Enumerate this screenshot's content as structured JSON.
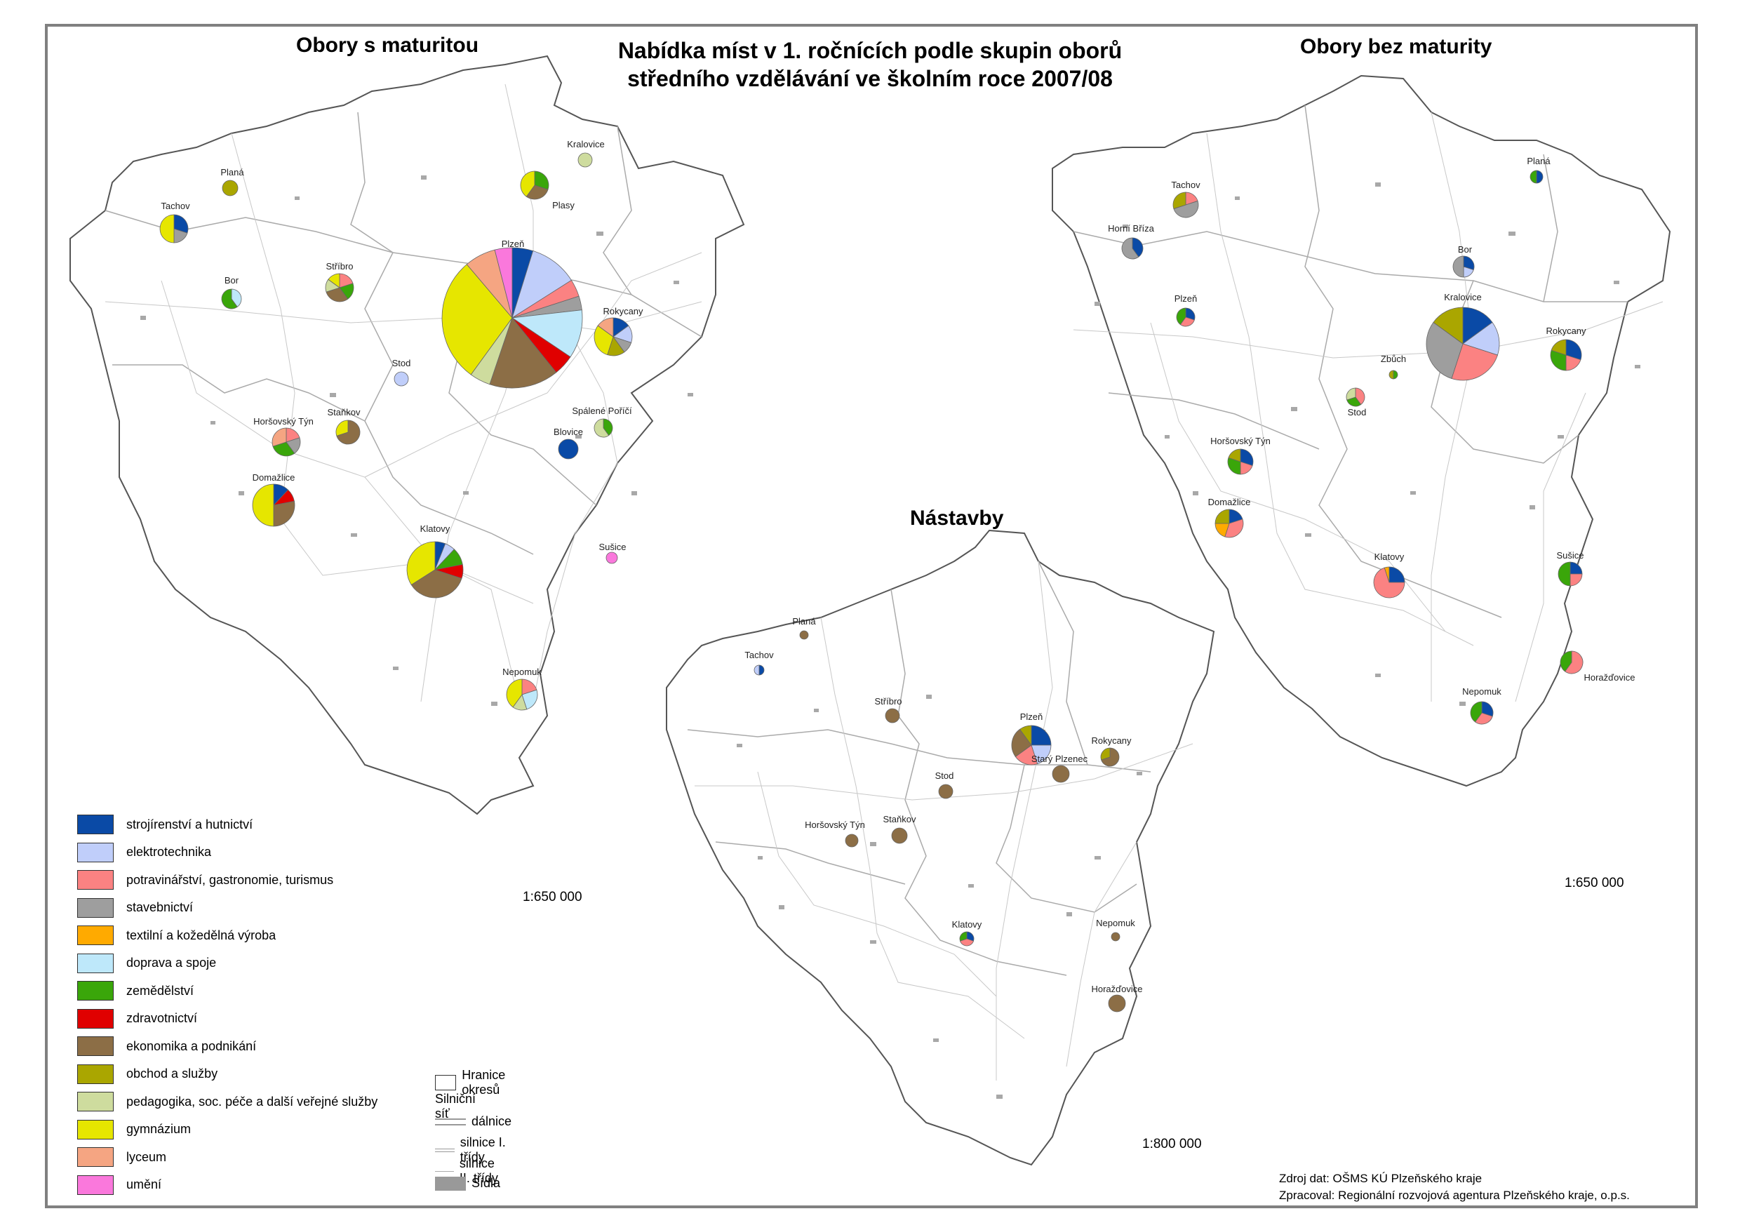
{
  "title": {
    "line1": "Nabídka míst v 1. ročnících podle skupin oborů",
    "line2": "středního vzdělávání ve školním roce 2007/08"
  },
  "panels": {
    "left": {
      "title": "Obory s maturitou",
      "scale": "1:650 000"
    },
    "right": {
      "title": "Obory bez maturity",
      "scale": "1:650 000"
    },
    "center": {
      "title": "Nástavby",
      "scale": "1:800 000"
    }
  },
  "legend": {
    "items": [
      {
        "label": "strojírenství a hutnictví",
        "color": "#0a4aa6"
      },
      {
        "label": "elektrotechnika",
        "color": "#c0cefa"
      },
      {
        "label": "potravinářství, gastronomie, turismus",
        "color": "#fb8282"
      },
      {
        "label": "stavebnictví",
        "color": "#9e9e9e"
      },
      {
        "label": "textilní a kožedělná výroba",
        "color": "#ffaa00"
      },
      {
        "label": "doprava a spoje",
        "color": "#bee8fa"
      },
      {
        "label": "zemědělství",
        "color": "#3aa60a"
      },
      {
        "label": "zdravotnictví",
        "color": "#e00000"
      },
      {
        "label": "ekonomika a podnikání",
        "color": "#8c6e46"
      },
      {
        "label": "obchod a služby",
        "color": "#aaa600"
      },
      {
        "label": "pedagogika, soc. péče a další veřejné služby",
        "color": "#cedc9e"
      },
      {
        "label": "gymnázium",
        "color": "#e6e600"
      },
      {
        "label": "lyceum",
        "color": "#f5a582"
      },
      {
        "label": "umění",
        "color": "#fa78dc"
      }
    ]
  },
  "road_legend": {
    "boundary": "Hranice okresů",
    "heading": "Silniční síť",
    "motorway": "dálnice",
    "road1": "silnice I. třídy",
    "road2": "silnice II. třídy",
    "settlements": "Sídla"
  },
  "source": {
    "line1": "Zdroj dat: OŠMS KÚ Plzeňského kraje",
    "line2": "Zpracoval: Regionální rozvojová agentura Plzeňského kraje, o.p.s."
  },
  "cities": {
    "left": [
      "Plzeň",
      "Tachov",
      "Planá",
      "Bor",
      "Stříbro",
      "Kralovice",
      "Plasy",
      "Rokycany",
      "Stod",
      "Staňkov",
      "Horšovský Týn",
      "Domažlice",
      "Spálené Poříčí",
      "Blovice",
      "Klatovy",
      "Sušice",
      "Nepomuk"
    ],
    "right": [
      "Kralovice",
      "Planá",
      "Tachov",
      "Horní Bříza",
      "Bor",
      "Plzeň",
      "Rokycany",
      "Zbůch",
      "Stod",
      "Horšovský Týn",
      "Domažlice",
      "Klatovy",
      "Sušice",
      "Horažďovice",
      "Nepomuk"
    ],
    "center": [
      "Planá",
      "Tachov",
      "Stříbro",
      "Plzeň",
      "Rokycany",
      "Starý Plzenec",
      "Stod",
      "Horšovský Týn",
      "Staňkov",
      "Klatovy",
      "Nepomuk",
      "Horažďovice"
    ]
  }
}
